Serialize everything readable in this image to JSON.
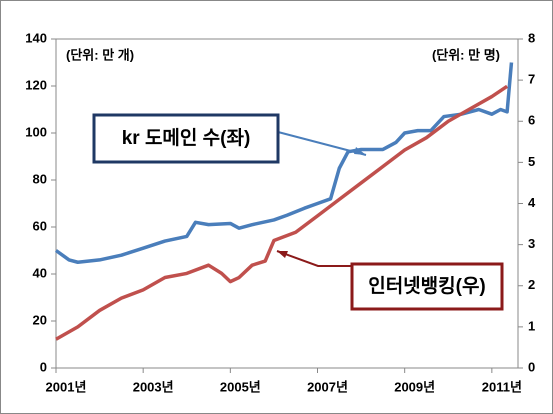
{
  "chart_data": {
    "type": "line",
    "annotations": [
      "(단위: 만 개)",
      "(단위: 만 명)"
    ],
    "series": [
      {
        "name": "kr 도메인 수(좌)",
        "color": "#4a7ebb",
        "axis": "y",
        "x": [
          2001.0,
          2001.3,
          2001.5,
          2002.0,
          2002.5,
          2003.0,
          2003.5,
          2004.0,
          2004.2,
          2004.5,
          2005.0,
          2005.2,
          2005.5,
          2006.0,
          2006.3,
          2006.7,
          2007.0,
          2007.3,
          2007.5,
          2007.7,
          2008.0,
          2008.5,
          2008.8,
          2009.0,
          2009.3,
          2009.6,
          2009.9,
          2010.3,
          2010.7,
          2011.0,
          2011.2,
          2011.35,
          2011.45
        ],
        "values": [
          50,
          46,
          45,
          46,
          48,
          51,
          54,
          56,
          62,
          61,
          61.5,
          59.5,
          61,
          63,
          65,
          68,
          70,
          72,
          85,
          92,
          93,
          93,
          96,
          100,
          101,
          101,
          107,
          108,
          110,
          108,
          110,
          109,
          130
        ]
      },
      {
        "name": "인터넷뱅킹(우)",
        "color": "#c0504d",
        "axis": "y2",
        "x": [
          2001.0,
          2001.5,
          2002.0,
          2002.5,
          2003.0,
          2003.5,
          2004.0,
          2004.5,
          2004.8,
          2005.0,
          2005.2,
          2005.5,
          2005.8,
          2006.0,
          2006.5,
          2007.0,
          2007.5,
          2008.0,
          2008.5,
          2009.0,
          2009.5,
          2010.0,
          2010.5,
          2011.0,
          2011.35
        ],
        "values": [
          0.7,
          1.0,
          1.4,
          1.7,
          1.9,
          2.2,
          2.3,
          2.5,
          2.3,
          2.1,
          2.2,
          2.5,
          2.6,
          3.1,
          3.3,
          3.7,
          4.1,
          4.5,
          4.9,
          5.3,
          5.6,
          6.0,
          6.3,
          6.6,
          6.85
        ]
      }
    ],
    "xlim": [
      2001,
      2011.6
    ],
    "xticks": [
      {
        "value": 2001,
        "label": "2001년"
      },
      {
        "value": 2003,
        "label": "2003년"
      },
      {
        "value": 2005,
        "label": "2005년"
      },
      {
        "value": 2007,
        "label": "2007년"
      },
      {
        "value": 2009,
        "label": "2009년"
      },
      {
        "value": 2011,
        "label": "2011년"
      }
    ],
    "ylim": [
      0,
      140
    ],
    "yticks": [
      0,
      20,
      40,
      60,
      80,
      100,
      120,
      140
    ],
    "y2lim": [
      0,
      8
    ],
    "y2ticks": [
      0,
      1,
      2,
      3,
      4,
      5,
      6,
      7,
      8
    ]
  }
}
